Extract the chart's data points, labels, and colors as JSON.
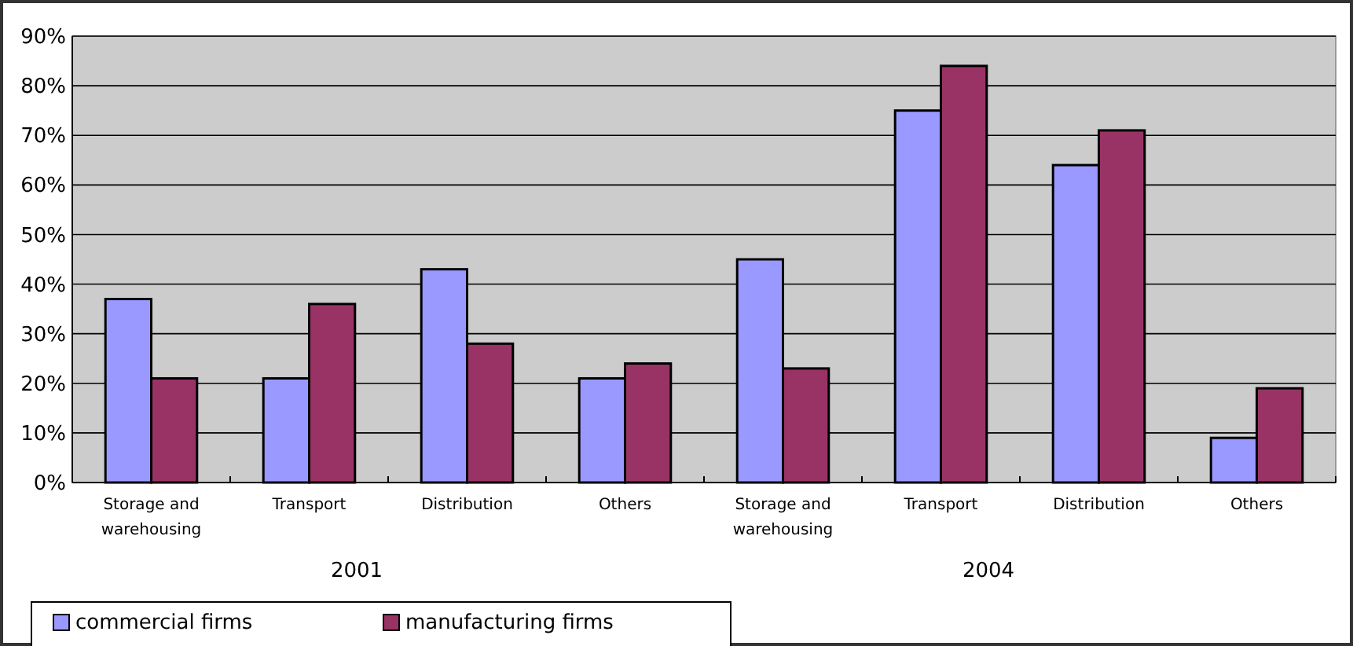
{
  "chart_data": {
    "type": "bar",
    "categories": [
      "Storage and warehousing",
      "Transport",
      "Distribution",
      "Others",
      "Storage and warehousing",
      "Transport",
      "Distribution",
      "Others"
    ],
    "series": [
      {
        "name": "commercial firms",
        "color": "#9999ff",
        "values": [
          37,
          21,
          43,
          21,
          45,
          75,
          64,
          9
        ]
      },
      {
        "name": "manufacturing firms",
        "color": "#993366",
        "values": [
          21,
          36,
          28,
          24,
          23,
          84,
          71,
          19
        ]
      }
    ],
    "annotations": [
      "2001",
      "2004"
    ],
    "ylim": [
      0,
      90
    ],
    "yticks": [
      {
        "value": 0,
        "label": "0%"
      },
      {
        "value": 10,
        "label": "10%"
      },
      {
        "value": 20,
        "label": "20%"
      },
      {
        "value": 30,
        "label": "30%"
      },
      {
        "value": 40,
        "label": "40%"
      },
      {
        "value": 50,
        "label": "50%"
      },
      {
        "value": 60,
        "label": "60%"
      },
      {
        "value": 70,
        "label": "70%"
      },
      {
        "value": 80,
        "label": "80%"
      },
      {
        "value": 90,
        "label": "90%"
      }
    ],
    "grid": "y",
    "legend": "bottom left"
  }
}
